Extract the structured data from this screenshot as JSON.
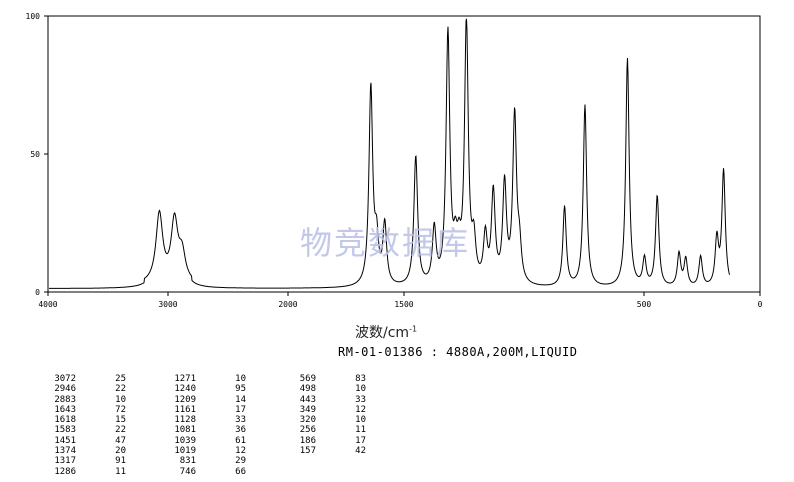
{
  "chart_data": {
    "type": "line",
    "title": "",
    "xlabel": "波数/cm",
    "xlabel_sup": "-1",
    "ylabel": "",
    "xlim": [
      4000,
      0
    ],
    "ylim": [
      0,
      100
    ],
    "x_ticks": [
      4000,
      3000,
      2000,
      1500,
      500,
      0
    ],
    "x_tick_labels": [
      "4000",
      "3000",
      "2000",
      "1500",
      "500",
      "0"
    ],
    "y_ticks": [
      0,
      50,
      100
    ],
    "y_tick_labels": [
      "0",
      "50",
      "100"
    ],
    "grid": false,
    "legend": "none",
    "spectrum_info": "RM-01-01386 : 4880A,200M,LIQUID",
    "peaks": [
      {
        "wn": 3072,
        "i": 25
      },
      {
        "wn": 2946,
        "i": 22
      },
      {
        "wn": 2883,
        "i": 10
      },
      {
        "wn": 1643,
        "i": 72
      },
      {
        "wn": 1618,
        "i": 15
      },
      {
        "wn": 1583,
        "i": 22
      },
      {
        "wn": 1451,
        "i": 47
      },
      {
        "wn": 1374,
        "i": 20
      },
      {
        "wn": 1317,
        "i": 91
      },
      {
        "wn": 1286,
        "i": 11
      },
      {
        "wn": 1271,
        "i": 10
      },
      {
        "wn": 1240,
        "i": 95
      },
      {
        "wn": 1209,
        "i": 14
      },
      {
        "wn": 1161,
        "i": 17
      },
      {
        "wn": 1128,
        "i": 33
      },
      {
        "wn": 1081,
        "i": 36
      },
      {
        "wn": 1039,
        "i": 61
      },
      {
        "wn": 1019,
        "i": 12
      },
      {
        "wn": 831,
        "i": 29
      },
      {
        "wn": 746,
        "i": 66
      },
      {
        "wn": 569,
        "i": 83
      },
      {
        "wn": 498,
        "i": 10
      },
      {
        "wn": 443,
        "i": 33
      },
      {
        "wn": 349,
        "i": 12
      },
      {
        "wn": 320,
        "i": 10
      },
      {
        "wn": 256,
        "i": 11
      },
      {
        "wn": 186,
        "i": 17
      },
      {
        "wn": 157,
        "i": 42
      }
    ],
    "peak_table_columns": [
      [
        [
          "3072",
          "25"
        ],
        [
          "2946",
          "22"
        ],
        [
          "2883",
          "10"
        ],
        [
          "1643",
          "72"
        ],
        [
          "1618",
          "15"
        ],
        [
          "1583",
          "22"
        ],
        [
          "1451",
          "47"
        ],
        [
          "1374",
          "20"
        ],
        [
          "1317",
          "91"
        ],
        [
          "1286",
          "11"
        ]
      ],
      [
        [
          "1271",
          "10"
        ],
        [
          "1240",
          "95"
        ],
        [
          "1209",
          "14"
        ],
        [
          "1161",
          "17"
        ],
        [
          "1128",
          "33"
        ],
        [
          "1081",
          "36"
        ],
        [
          "1039",
          "61"
        ],
        [
          "1019",
          "12"
        ],
        [
          "831",
          "29"
        ],
        [
          "746",
          "66"
        ]
      ],
      [
        [
          "569",
          "83"
        ],
        [
          "498",
          "10"
        ],
        [
          "443",
          "33"
        ],
        [
          "349",
          "12"
        ],
        [
          "320",
          "10"
        ],
        [
          "256",
          "11"
        ],
        [
          "186",
          "17"
        ],
        [
          "157",
          "42"
        ]
      ]
    ]
  },
  "watermark": "物竞数据库"
}
